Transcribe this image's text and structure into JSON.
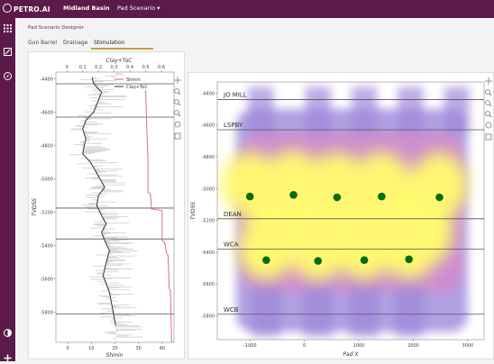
{
  "app": {
    "logo_text": "PETRO.AI",
    "basin_label": "Midland Basin",
    "scenario_label": "Pad Scenario",
    "scenario_caret": "▾"
  },
  "colors": {
    "brand": "#5c1a4a",
    "accent_underline": "#c9a230",
    "well_marker": "#0a6b12",
    "shmin_line": "#d0608f",
    "clay_line": "#333333"
  },
  "icons": {
    "sidebar": [
      "grid-icon",
      "edit-icon",
      "compass-icon",
      "contrast-icon",
      "plus-icon"
    ],
    "plot_toolbar": [
      "pan-icon",
      "zoom-icon",
      "zoom-in-icon",
      "zoom-out-icon",
      "reset-icon",
      "save-icon"
    ]
  },
  "breadcrumb": "Pad Scenario Designer",
  "tabs": [
    {
      "label": "Gun Barrel"
    },
    {
      "label": "Drainage"
    },
    {
      "label": "Stimulation",
      "active": true
    }
  ],
  "chart_data": [
    {
      "type": "line",
      "title": "",
      "xlabel": "Shmin",
      "x2label": "Clay+ToC",
      "ylabel": "TVDSS",
      "xlim": [
        -5,
        45
      ],
      "x2lim": [
        -0.07,
        0.68
      ],
      "ylim": [
        -5980,
        -4360
      ],
      "xticks": [
        "0",
        "10",
        "20",
        "30",
        "40"
      ],
      "x2ticks": [
        "0",
        "0.1",
        "0.2",
        "0.3",
        "0.4",
        "0.5",
        "0.6"
      ],
      "yticks": [
        "-4400",
        "-4600",
        "-4800",
        "-5000",
        "-5200",
        "-5400",
        "-5600",
        "-5800"
      ],
      "legend": {
        "entries": [
          "Shmin",
          "Clay+ToC"
        ],
        "placement": "top-right"
      },
      "formation_tops": [
        -4430,
        -4630,
        -5175,
        -5360,
        -5810
      ],
      "series": [
        {
          "name": "Shmin",
          "x": [
            33,
            33.5,
            34,
            34,
            35,
            35.5,
            40,
            40,
            41,
            42,
            42.5,
            43,
            43.5,
            44
          ],
          "y": [
            -4470,
            -4700,
            -4900,
            -5080,
            -5090,
            -5180,
            -5190,
            -5370,
            -5380,
            -5450,
            -5460,
            -5660,
            -5670,
            -5980
          ]
        },
        {
          "name": "Clay+ToC",
          "x": [
            0.16,
            0.17,
            0.22,
            0.2,
            0.17,
            0.12,
            0.1,
            0.12,
            0.11,
            0.1,
            0.15,
            0.18,
            0.21,
            0.24,
            0.2,
            0.19,
            0.22,
            0.25,
            0.22,
            0.24,
            0.27,
            0.25,
            0.23,
            0.27,
            0.29,
            0.31
          ],
          "y": [
            -4390,
            -4430,
            -4480,
            -4530,
            -4600,
            -4650,
            -4700,
            -4760,
            -4800,
            -4850,
            -4900,
            -4950,
            -5000,
            -5050,
            -5100,
            -5160,
            -5220,
            -5270,
            -5320,
            -5370,
            -5430,
            -5500,
            -5580,
            -5680,
            -5780,
            -5880
          ]
        }
      ]
    },
    {
      "type": "heatmap",
      "title": "",
      "xlabel": "Pad X",
      "ylabel": "TVDSS",
      "xlim": [
        -1600,
        3300
      ],
      "ylim": [
        -5950,
        -4330
      ],
      "xticks": [
        "-1000",
        "0",
        "1000",
        "2000",
        "3000"
      ],
      "yticks": [
        "-4400",
        "-4600",
        "-4800",
        "-5000",
        "-5200",
        "-5400",
        "-5600",
        "-5800"
      ],
      "formation_tops": [
        {
          "label": "JO MILL",
          "y": -4440
        },
        {
          "label": "LSPBY",
          "y": -4630
        },
        {
          "label": "DEAN",
          "y": -5190
        },
        {
          "label": "WCA",
          "y": -5380
        },
        {
          "label": "WCB",
          "y": -5790
        }
      ],
      "wells": [
        {
          "x": -1000,
          "y": -5050
        },
        {
          "x": -200,
          "y": -5040
        },
        {
          "x": 600,
          "y": -5055
        },
        {
          "x": 1420,
          "y": -5050
        },
        {
          "x": 2480,
          "y": -5055
        },
        {
          "x": -700,
          "y": -5450
        },
        {
          "x": 250,
          "y": -5455
        },
        {
          "x": 1100,
          "y": -5450
        },
        {
          "x": 1920,
          "y": -5445
        }
      ]
    }
  ]
}
